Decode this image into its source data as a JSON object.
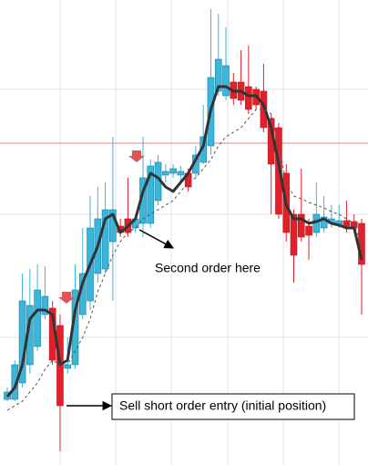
{
  "chart_data": {
    "type": "candlestick",
    "ylim": [
      0,
      510
    ],
    "colors": {
      "up": "#3bb5d8",
      "up_edge": "#1b7fa3",
      "down": "#e3202a",
      "down_edge": "#b51a20"
    },
    "open": [
      72,
      72,
      90,
      110,
      130,
      165,
      172,
      153,
      106,
      110,
      165,
      180,
      210,
      215,
      245,
      262,
      270,
      260,
      265,
      265,
      290,
      318,
      320,
      318,
      320,
      320,
      332,
      350,
      410,
      405,
      420,
      420,
      415,
      412,
      410,
      380,
      370,
      320,
      275,
      275,
      262,
      255,
      260,
      265,
      264,
      268,
      267,
      265
    ],
    "high": [
      85,
      115,
      210,
      215,
      220,
      218,
      180,
      165,
      140,
      220,
      260,
      295,
      305,
      310,
      360,
      270,
      315,
      275,
      360,
      335,
      340,
      330,
      330,
      328,
      325,
      350,
      395,
      500,
      495,
      480,
      430,
      455,
      460,
      415,
      440,
      385,
      375,
      330,
      280,
      325,
      270,
      310,
      295,
      285,
      285,
      290,
      275,
      270
    ],
    "low": [
      70,
      70,
      85,
      100,
      125,
      160,
      110,
      15,
      100,
      105,
      160,
      170,
      200,
      210,
      180,
      250,
      250,
      255,
      250,
      260,
      285,
      310,
      315,
      312,
      300,
      315,
      330,
      340,
      405,
      400,
      395,
      395,
      385,
      390,
      365,
      275,
      270,
      245,
      200,
      245,
      225,
      250,
      255,
      260,
      260,
      255,
      255,
      165
    ],
    "close": [
      80,
      110,
      180,
      175,
      192,
      185,
      115,
      65,
      110,
      192,
      210,
      260,
      270,
      280,
      280,
      255,
      255,
      270,
      315,
      328,
      332,
      322,
      325,
      322,
      305,
      340,
      360,
      425,
      445,
      438,
      402,
      400,
      390,
      395,
      370,
      330,
      275,
      255,
      230,
      250,
      252,
      275,
      272,
      270,
      268,
      262,
      260,
      220
    ],
    "lines": [
      {
        "color": "#333333",
        "dash": false,
        "values": [
          75,
          85,
          110,
          160,
          170,
          170,
          165,
          110,
          115,
          170,
          200,
          220,
          240,
          270,
          275,
          255,
          262,
          270,
          300,
          320,
          315,
          305,
          300,
          310,
          320,
          335,
          350,
          390,
          415,
          415,
          410,
          410,
          405,
          405,
          395,
          370,
          330,
          285,
          270,
          270,
          265,
          267,
          270,
          265,
          263,
          260,
          260,
          225
        ]
      },
      {
        "color": "#555555",
        "dash": true,
        "values": [
          60,
          65,
          70,
          80,
          90,
          105,
          115,
          110,
          110,
          125,
          140,
          160,
          190,
          210,
          230,
          245,
          255,
          260,
          270,
          275,
          280,
          285,
          290,
          300,
          310,
          315,
          325,
          335,
          350,
          360,
          365,
          370,
          380,
          390,
          390,
          385,
          350,
          310,
          295,
          292,
          288,
          285,
          282,
          278,
          275,
          270,
          265,
          240
        ]
      }
    ],
    "level": {
      "value": 353,
      "color": "#f08080"
    },
    "annotations": [
      "Second order here",
      "Sell short order entry (initial position)"
    ]
  }
}
